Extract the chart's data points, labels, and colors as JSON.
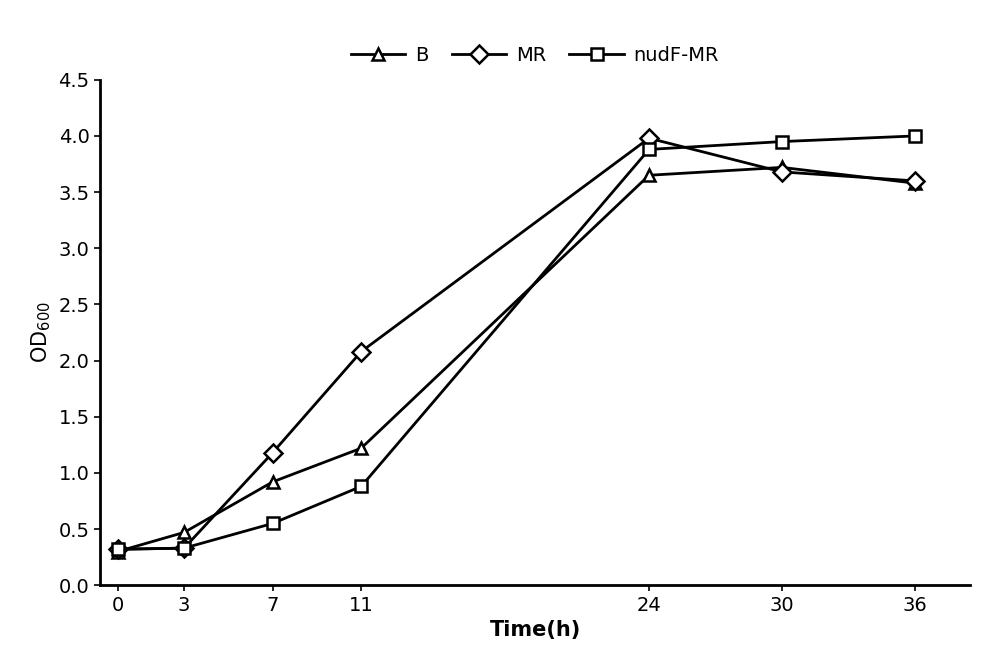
{
  "time": [
    0,
    3,
    7,
    11,
    24,
    30,
    36
  ],
  "B": [
    0.3,
    0.47,
    0.92,
    1.22,
    3.65,
    3.72,
    3.58
  ],
  "MR": [
    0.32,
    0.33,
    1.18,
    2.08,
    3.98,
    3.68,
    3.6
  ],
  "nudF_MR": [
    0.32,
    0.33,
    0.55,
    0.88,
    3.88,
    3.95,
    4.0
  ],
  "xlabel": "Time(h)",
  "ylabel": "OD$_{600}$",
  "ylim": [
    0,
    4.5
  ],
  "yticks": [
    0,
    0.5,
    1.0,
    1.5,
    2.0,
    2.5,
    3.0,
    3.5,
    4.0,
    4.5
  ],
  "xticks": [
    0,
    3,
    7,
    11,
    24,
    30,
    36
  ],
  "legend_labels": [
    "B",
    "MR",
    "nudF-MR"
  ],
  "line_color": "#000000",
  "marker_B": "^",
  "marker_MR": "D",
  "marker_nudF": "s",
  "linewidth": 2.0,
  "markersize": 9,
  "legend_loc": "upper center",
  "legend_ncol": 3,
  "label_fontsize": 15,
  "tick_fontsize": 14,
  "legend_fontsize": 14,
  "fig_width": 10.0,
  "fig_height": 6.65,
  "bg_color": "#ffffff"
}
